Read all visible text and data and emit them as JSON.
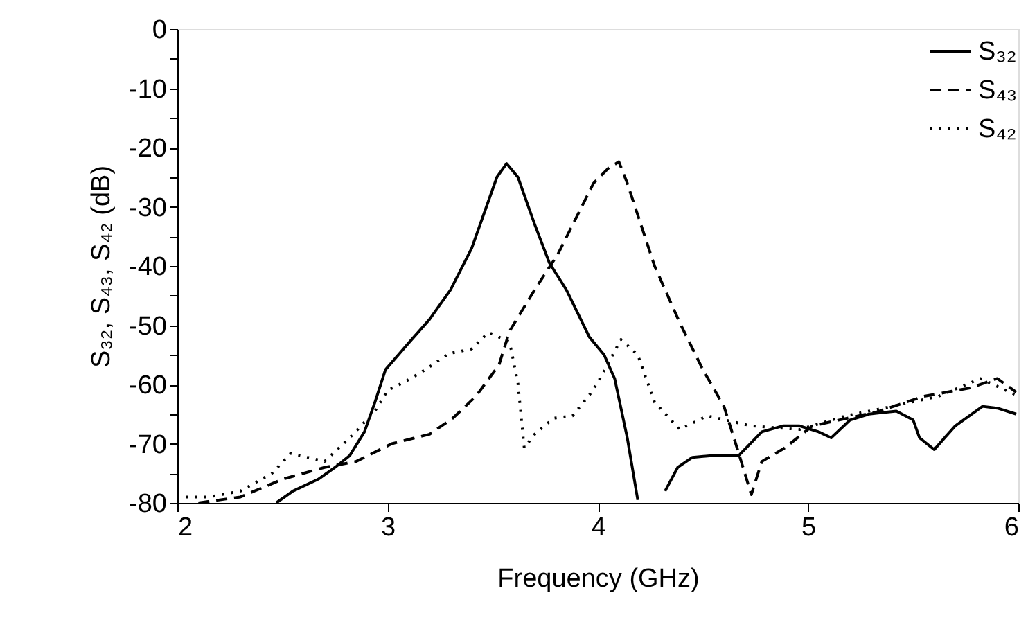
{
  "chart_data": {
    "type": "line",
    "xlabel": "Frequency (GHz)",
    "ylabel": "S₃₂, S₄₃, S₄₂ (dB)",
    "xlim": [
      2,
      6
    ],
    "xticks": [
      2,
      3,
      4,
      5,
      6
    ],
    "ylim": [
      -80,
      0
    ],
    "yticks": [
      -80,
      {
        "value": -75,
        "label": null
      },
      -70,
      {
        "value": -65,
        "label": null
      },
      -60,
      {
        "value": -55,
        "label": null
      },
      -50,
      {
        "value": -45,
        "label": null
      },
      -40,
      {
        "value": -35,
        "label": null
      },
      -30,
      {
        "value": -25,
        "label": null
      },
      -20,
      {
        "value": -15,
        "label": null
      },
      -10,
      {
        "value": -5,
        "label": null
      },
      0
    ],
    "grid": false,
    "legend": "top right",
    "marker": "none",
    "series": [
      {
        "name": "S₃₂",
        "color": "#000000",
        "line_style": "solid",
        "x": [
          2.47,
          2.55,
          2.67,
          2.75,
          2.82,
          2.89,
          2.94,
          2.99,
          3.1,
          3.2,
          3.3,
          3.4,
          3.47,
          3.52,
          3.566,
          3.62,
          3.7,
          3.77,
          3.85,
          3.96,
          4.03,
          4.08,
          4.14,
          4.19,
          4.25,
          4.32,
          4.38,
          4.45,
          4.55,
          4.67,
          4.78,
          4.88,
          4.96,
          5.05,
          5.11,
          5.2,
          5.29,
          5.42,
          5.5,
          5.53,
          5.6,
          5.65,
          5.7,
          5.83,
          5.9,
          5.99
        ],
        "values": [
          -80,
          -78,
          -76,
          -74,
          -72,
          -68,
          -63,
          -57.5,
          -53,
          -49,
          -44,
          -37,
          -30,
          -25,
          -22.7,
          -25,
          -33,
          -39.5,
          -44,
          -52,
          -55,
          -59,
          -69,
          -79.5,
          null,
          -78,
          -74,
          -72.3,
          -72,
          -72,
          -68,
          -67,
          -67,
          -68,
          -69,
          -66,
          -65,
          -64.5,
          -66,
          -69,
          -71,
          -69,
          -67,
          -63.7,
          -64,
          -65
        ]
      },
      {
        "name": "S₄₃",
        "color": "#000000",
        "line_style": "dashed",
        "x": [
          2.1,
          2.3,
          2.5,
          2.7,
          2.85,
          3.02,
          3.2,
          3.31,
          3.42,
          3.53,
          3.58,
          3.7,
          3.81,
          3.98,
          4.05,
          4.1,
          4.14,
          4.27,
          4.39,
          4.5,
          4.6,
          4.67,
          4.73,
          4.78,
          4.89,
          5.02,
          5.33,
          5.55,
          5.77,
          5.9,
          5.99
        ],
        "values": [
          -80,
          -79,
          -76,
          -74,
          -73,
          -70,
          -68.4,
          -65.7,
          -62,
          -56.7,
          -51,
          -44,
          -38,
          -26,
          -23.5,
          -22.4,
          -26,
          -40,
          -49.6,
          -57.5,
          -63.7,
          -71.6,
          -78.6,
          -73,
          -70.7,
          -67,
          -64.6,
          -62,
          -60.6,
          -59,
          -61.3
        ]
      },
      {
        "name": "S₄₂",
        "color": "#000000",
        "line_style": "dotted",
        "x": [
          2.0,
          2.15,
          2.3,
          2.45,
          2.54,
          2.7,
          2.82,
          2.94,
          3.0,
          3.09,
          3.18,
          3.29,
          3.4,
          3.48,
          3.58,
          3.62,
          3.65,
          3.7,
          3.79,
          3.88,
          3.97,
          4.01,
          4.11,
          4.19,
          4.27,
          4.39,
          4.52,
          4.73,
          4.96,
          5.18,
          5.4,
          5.62,
          5.82,
          5.99
        ],
        "values": [
          -79,
          -79,
          -78,
          -75,
          -71.6,
          -73,
          -69,
          -64.5,
          -61,
          -59.4,
          -57.5,
          -54.8,
          -54,
          -51.2,
          -52.8,
          -59.8,
          -70.7,
          -68.4,
          -65.7,
          -65.3,
          -61.3,
          -59,
          -52.4,
          -55,
          -63,
          -67.6,
          -65.3,
          -67,
          -67.6,
          -65.3,
          -63.7,
          -62,
          -59,
          -61.8
        ]
      }
    ]
  }
}
